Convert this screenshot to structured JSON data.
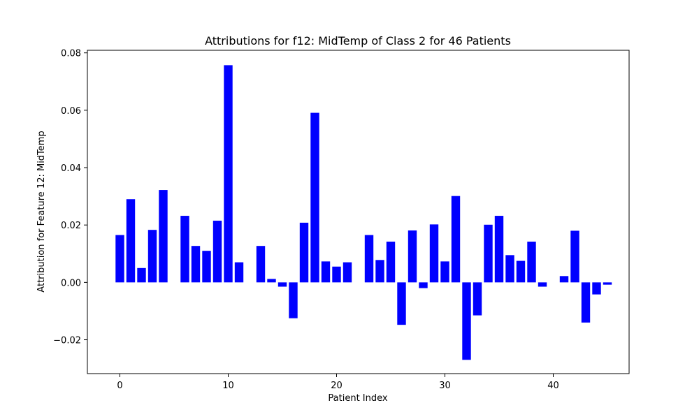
{
  "chart_data": {
    "type": "bar",
    "title": "Attributions for f12: MidTemp of Class 2 for 46 Patients",
    "xlabel": "Patient Index",
    "ylabel": "Attribution for Feature 12: MidTemp",
    "x": [
      0,
      1,
      2,
      3,
      4,
      5,
      6,
      7,
      8,
      9,
      10,
      11,
      12,
      13,
      14,
      15,
      16,
      17,
      18,
      19,
      20,
      21,
      22,
      23,
      24,
      25,
      26,
      27,
      28,
      29,
      30,
      31,
      32,
      33,
      34,
      35,
      36,
      37,
      38,
      39,
      40,
      41,
      42,
      43,
      44,
      45
    ],
    "values": [
      0.0165,
      0.029,
      0.005,
      0.0183,
      0.0322,
      0.0,
      0.0232,
      0.0127,
      0.011,
      0.0215,
      0.0757,
      0.007,
      0.0,
      0.0127,
      0.0012,
      -0.0015,
      -0.0125,
      0.0208,
      0.0591,
      0.0073,
      0.0055,
      0.007,
      0.0,
      0.0165,
      0.0078,
      0.0142,
      -0.0148,
      0.0181,
      -0.002,
      0.0202,
      0.0073,
      0.0301,
      -0.027,
      -0.0115,
      0.0201,
      0.0232,
      0.0095,
      0.0075,
      0.0142,
      -0.0015,
      0.0,
      0.0022,
      0.018,
      -0.014,
      -0.0042,
      -0.0008
    ],
    "xlim": [
      -3.0,
      47.0
    ],
    "ylim": [
      -0.0318,
      0.0809
    ],
    "xticks": [
      0,
      10,
      20,
      30,
      40
    ],
    "xtick_labels": [
      "0",
      "10",
      "20",
      "30",
      "40"
    ],
    "yticks": [
      -0.02,
      0.0,
      0.02,
      0.04,
      0.06,
      0.08
    ],
    "ytick_labels": [
      "−0.02",
      "0.00",
      "0.02",
      "0.04",
      "0.06",
      "0.08"
    ],
    "bar_width": 0.8,
    "bar_color": "#0000ff",
    "grid": false
  }
}
